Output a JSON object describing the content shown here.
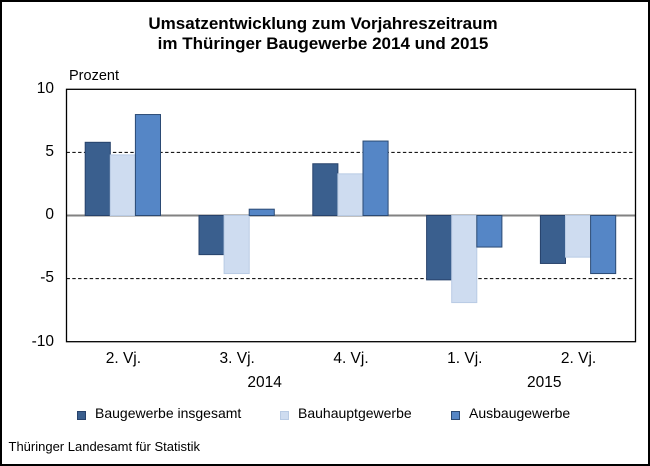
{
  "title": {
    "line1": "Umsatzentwicklung zum Vorjahreszeitraum",
    "line2": "im Thüringer Baugewerbe 2014 und 2015"
  },
  "footer": {
    "text": "Thüringer Landesamt für Statistik"
  },
  "colors": {
    "background": "#ffffff",
    "frame_border": "#000000",
    "plot_border": "#000000",
    "zero_line": "#828282",
    "gridline": "#1a1a1a",
    "text": "#000000"
  },
  "chart_data": {
    "type": "bar",
    "title": "Umsatzentwicklung zum Vorjahreszeitraum im Thüringer Baugewerbe 2014 und 2015",
    "ylabel": "Prozent",
    "xlabel": "",
    "ylim": [
      -10,
      10
    ],
    "yticks": [
      10,
      5,
      0,
      -5,
      -10
    ],
    "dashed_gridlines": [
      5,
      -5
    ],
    "grid": "dashed horizontal lines at 5 and -5, solid grey zero line",
    "legend_position": "bottom",
    "categories": [
      "2. Vj.",
      "3. Vj.",
      "4. Vj.",
      "1. Vj.",
      "2. Vj."
    ],
    "year_labels": [
      {
        "text": "2014",
        "span_categories": [
          0,
          2
        ]
      },
      {
        "text": "2015",
        "span_categories": [
          3,
          4
        ]
      }
    ],
    "series": [
      {
        "name": "Baugewerbe insgesamt",
        "color": "#3A5F8E",
        "border_color": "#27426B",
        "values": [
          5.8,
          -3.1,
          4.1,
          -5.1,
          -3.8
        ]
      },
      {
        "name": "Bauhauptgewerbe",
        "color": "#CEDCF0",
        "border_color": "#B9CBE4",
        "values": [
          4.8,
          -4.6,
          3.3,
          -6.9,
          -3.3
        ]
      },
      {
        "name": "Ausbaugewerbe",
        "color": "#5586C6",
        "border_color": "#2B4A74",
        "values": [
          8.0,
          0.5,
          5.9,
          -2.5,
          -4.6
        ]
      }
    ]
  }
}
